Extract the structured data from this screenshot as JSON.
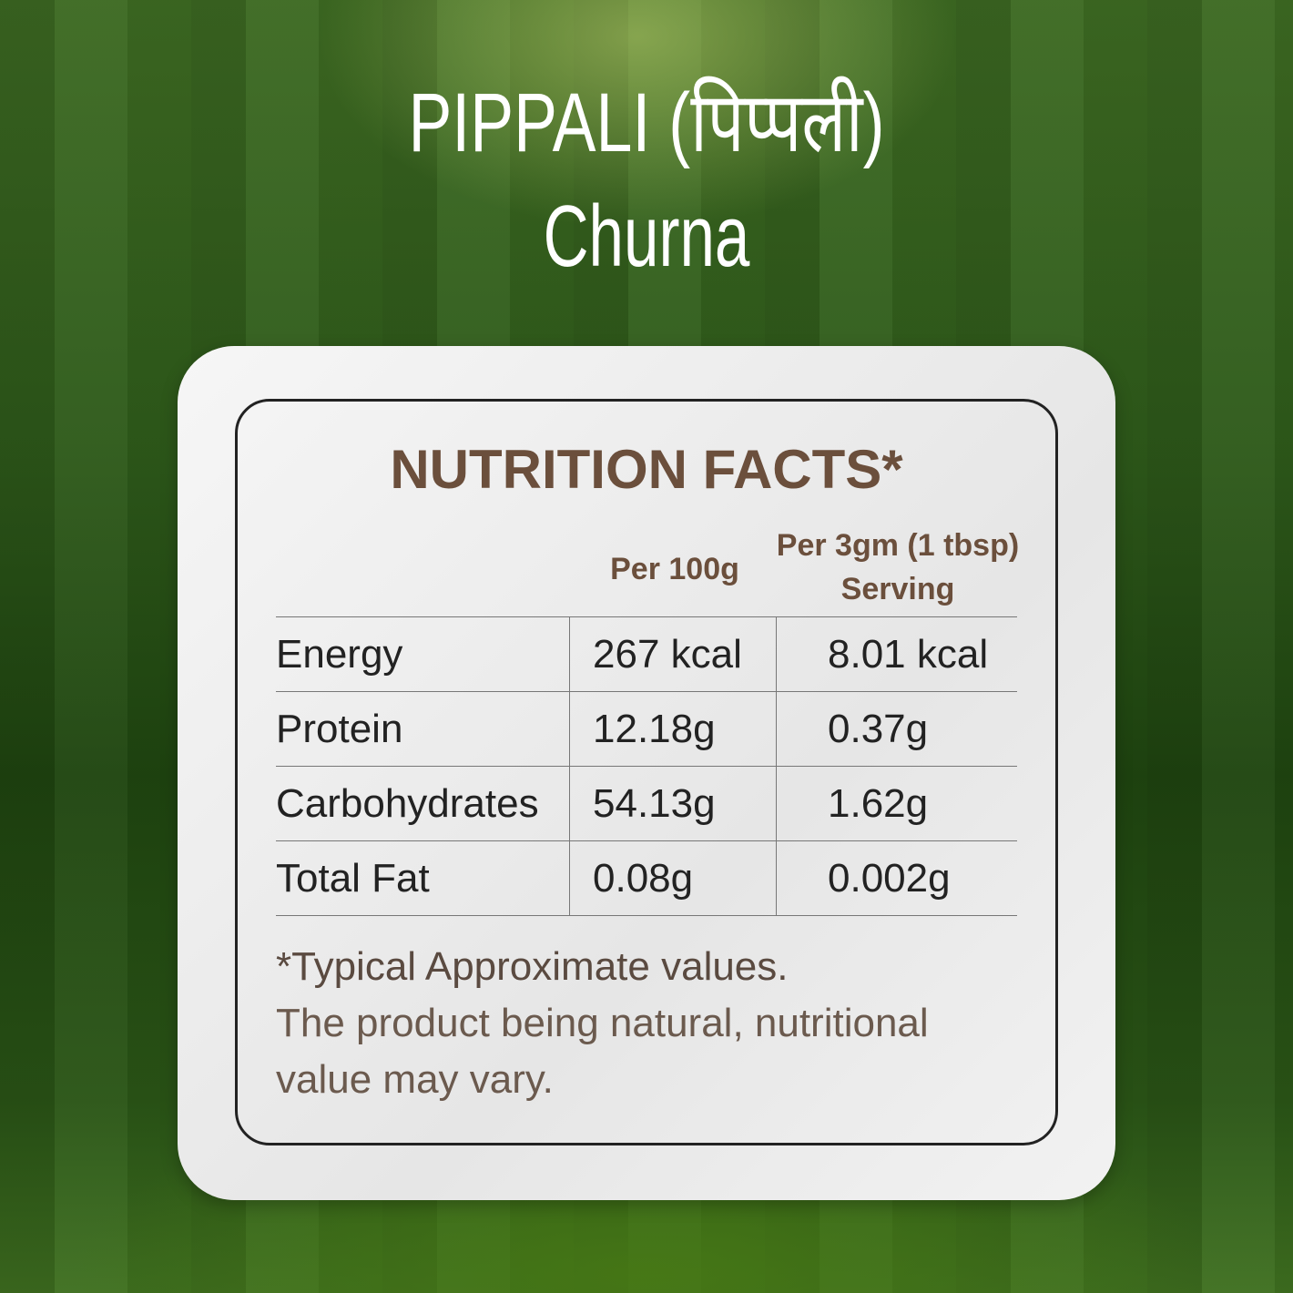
{
  "header": {
    "title": "PIPPALI (पिप्पली)",
    "subtitle": "Churna"
  },
  "nutrition": {
    "title": "NUTRITION FACTS*",
    "columns": [
      "Per 100g",
      "Per 3gm (1 tbsp)",
      "Serving"
    ],
    "rows": [
      {
        "label": "Energy",
        "per100": "267 kcal",
        "serving": "8.01 kcal"
      },
      {
        "label": "Protein",
        "per100": "12.18g",
        "serving": "0.37g"
      },
      {
        "label": "Carbohydrates",
        "per100": "54.13g",
        "serving": "1.62g"
      },
      {
        "label": "Total Fat",
        "per100": "0.08g",
        "serving": "0.002g"
      }
    ],
    "footnote": [
      "*Typical Approximate values.",
      "The product being natural, nutritional",
      "value may vary."
    ]
  },
  "colors": {
    "brown": "#6b4f3c",
    "text": "#222222",
    "bg": "#2e5a1a"
  }
}
